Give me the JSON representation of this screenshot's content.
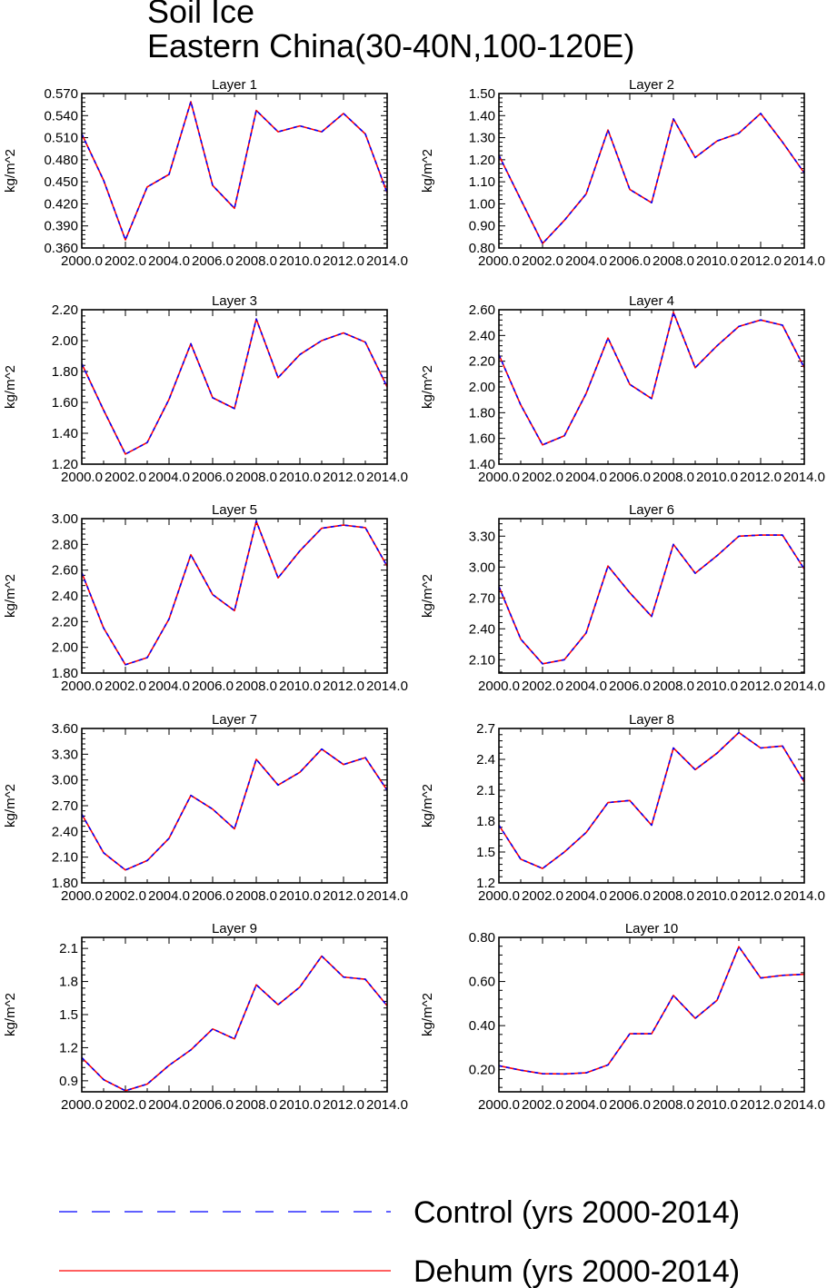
{
  "figure": {
    "title_line1": "Soil Ice",
    "title_line2": "Eastern China(30-40N,100-120E)",
    "ylabel": "kg/m^2"
  },
  "legend": {
    "items": [
      {
        "label": "Control (yrs 2000-2014)",
        "color": "#0000ff",
        "style": "dashed"
      },
      {
        "label": "Dehum (yrs 2000-2014)",
        "color": "#ff0000",
        "style": "solid"
      }
    ]
  },
  "chart_data": [
    {
      "type": "line",
      "title": "Layer 1",
      "ylabel": "kg/m^2",
      "xlim": [
        2000,
        2014
      ],
      "ylim": [
        0.36,
        0.57
      ],
      "xticks": [
        "2000.0",
        "2002.0",
        "2004.0",
        "2006.0",
        "2008.0",
        "2010.0",
        "2012.0",
        "2014.0"
      ],
      "yticks": [
        "0.360",
        "0.390",
        "0.420",
        "0.450",
        "0.480",
        "0.510",
        "0.540",
        "0.570"
      ],
      "x": [
        2000,
        2001,
        2002,
        2003,
        2004,
        2005,
        2006,
        2007,
        2008,
        2009,
        2010,
        2011,
        2012,
        2013,
        2014
      ],
      "series": [
        {
          "name": "Control (yrs 2000-2014)",
          "values": [
            0.515,
            0.452,
            0.371,
            0.443,
            0.46,
            0.559,
            0.445,
            0.414,
            0.547,
            0.518,
            0.526,
            0.518,
            0.543,
            0.515,
            0.435
          ]
        },
        {
          "name": "Dehum (yrs 2000-2014)",
          "values": [
            0.515,
            0.452,
            0.371,
            0.443,
            0.46,
            0.559,
            0.445,
            0.414,
            0.547,
            0.518,
            0.526,
            0.518,
            0.543,
            0.515,
            0.435
          ]
        }
      ]
    },
    {
      "type": "line",
      "title": "Layer 2",
      "ylabel": "kg/m^2",
      "xlim": [
        2000,
        2014
      ],
      "ylim": [
        0.8,
        1.5
      ],
      "xticks": [
        "2000.0",
        "2002.0",
        "2004.0",
        "2006.0",
        "2008.0",
        "2010.0",
        "2012.0",
        "2014.0"
      ],
      "yticks": [
        "0.80",
        "0.90",
        "1.00",
        "1.10",
        "1.20",
        "1.30",
        "1.40",
        "1.50"
      ],
      "x": [
        2000,
        2001,
        2002,
        2003,
        2004,
        2005,
        2006,
        2007,
        2008,
        2009,
        2010,
        2011,
        2012,
        2013,
        2014
      ],
      "series": [
        {
          "name": "Control (yrs 2000-2014)",
          "values": [
            1.22,
            1.02,
            0.82,
            0.925,
            1.045,
            1.335,
            1.065,
            1.005,
            1.385,
            1.21,
            1.285,
            1.32,
            1.41,
            1.28,
            1.14
          ]
        },
        {
          "name": "Dehum (yrs 2000-2014)",
          "values": [
            1.22,
            1.02,
            0.82,
            0.925,
            1.045,
            1.335,
            1.065,
            1.005,
            1.385,
            1.21,
            1.285,
            1.32,
            1.41,
            1.28,
            1.14
          ]
        }
      ]
    },
    {
      "type": "line",
      "title": "Layer 3",
      "ylabel": "kg/m^2",
      "xlim": [
        2000,
        2014
      ],
      "ylim": [
        1.2,
        2.2
      ],
      "xticks": [
        "2000.0",
        "2002.0",
        "2004.0",
        "2006.0",
        "2008.0",
        "2010.0",
        "2012.0",
        "2014.0"
      ],
      "yticks": [
        "1.20",
        "1.40",
        "1.60",
        "1.80",
        "2.00",
        "2.20"
      ],
      "x": [
        2000,
        2001,
        2002,
        2003,
        2004,
        2005,
        2006,
        2007,
        2008,
        2009,
        2010,
        2011,
        2012,
        2013,
        2014
      ],
      "series": [
        {
          "name": "Control (yrs 2000-2014)",
          "values": [
            1.85,
            1.55,
            1.265,
            1.34,
            1.62,
            1.98,
            1.63,
            1.56,
            2.14,
            1.76,
            1.91,
            2.0,
            2.05,
            1.99,
            1.7
          ]
        },
        {
          "name": "Dehum (yrs 2000-2014)",
          "values": [
            1.85,
            1.55,
            1.265,
            1.34,
            1.62,
            1.98,
            1.63,
            1.56,
            2.14,
            1.76,
            1.91,
            2.0,
            2.05,
            1.99,
            1.7
          ]
        }
      ]
    },
    {
      "type": "line",
      "title": "Layer 4",
      "ylabel": "kg/m^2",
      "xlim": [
        2000,
        2014
      ],
      "ylim": [
        1.4,
        2.6
      ],
      "xticks": [
        "2000.0",
        "2002.0",
        "2004.0",
        "2006.0",
        "2008.0",
        "2010.0",
        "2012.0",
        "2014.0"
      ],
      "yticks": [
        "1.40",
        "1.60",
        "1.80",
        "2.00",
        "2.20",
        "2.40",
        "2.60"
      ],
      "x": [
        2000,
        2001,
        2002,
        2003,
        2004,
        2005,
        2006,
        2007,
        2008,
        2009,
        2010,
        2011,
        2012,
        2013,
        2014
      ],
      "series": [
        {
          "name": "Control (yrs 2000-2014)",
          "values": [
            2.25,
            1.86,
            1.55,
            1.62,
            1.95,
            2.38,
            2.02,
            1.91,
            2.58,
            2.15,
            2.32,
            2.47,
            2.52,
            2.48,
            2.15
          ]
        },
        {
          "name": "Dehum (yrs 2000-2014)",
          "values": [
            2.25,
            1.86,
            1.55,
            1.62,
            1.95,
            2.38,
            2.02,
            1.91,
            2.58,
            2.15,
            2.32,
            2.47,
            2.52,
            2.48,
            2.15
          ]
        }
      ]
    },
    {
      "type": "line",
      "title": "Layer 5",
      "ylabel": "kg/m^2",
      "xlim": [
        2000,
        2014
      ],
      "ylim": [
        1.8,
        3.0
      ],
      "xticks": [
        "2000.0",
        "2002.0",
        "2004.0",
        "2006.0",
        "2008.0",
        "2010.0",
        "2012.0",
        "2014.0"
      ],
      "yticks": [
        "1.80",
        "2.00",
        "2.20",
        "2.40",
        "2.60",
        "2.80",
        "3.00"
      ],
      "x": [
        2000,
        2001,
        2002,
        2003,
        2004,
        2005,
        2006,
        2007,
        2008,
        2009,
        2010,
        2011,
        2012,
        2013,
        2014
      ],
      "series": [
        {
          "name": "Control (yrs 2000-2014)",
          "values": [
            2.58,
            2.15,
            1.865,
            1.92,
            2.22,
            2.72,
            2.41,
            2.285,
            2.98,
            2.54,
            2.75,
            2.925,
            2.95,
            2.93,
            2.63
          ]
        },
        {
          "name": "Dehum (yrs 2000-2014)",
          "values": [
            2.58,
            2.15,
            1.865,
            1.92,
            2.22,
            2.72,
            2.41,
            2.285,
            2.98,
            2.54,
            2.75,
            2.925,
            2.95,
            2.93,
            2.63
          ]
        }
      ]
    },
    {
      "type": "line",
      "title": "Layer 6",
      "ylabel": "kg/m^2",
      "xlim": [
        2000,
        2014
      ],
      "ylim": [
        1.97,
        3.47
      ],
      "xticks": [
        "2000.0",
        "2002.0",
        "2004.0",
        "2006.0",
        "2008.0",
        "2010.0",
        "2012.0",
        "2014.0"
      ],
      "yticks": [
        "2.10",
        "2.40",
        "2.70",
        "3.00",
        "3.30"
      ],
      "x": [
        2000,
        2001,
        2002,
        2003,
        2004,
        2005,
        2006,
        2007,
        2008,
        2009,
        2010,
        2011,
        2012,
        2013,
        2014
      ],
      "series": [
        {
          "name": "Control (yrs 2000-2014)",
          "values": [
            2.81,
            2.3,
            2.06,
            2.1,
            2.36,
            3.01,
            2.75,
            2.52,
            3.22,
            2.94,
            3.11,
            3.3,
            3.31,
            3.31,
            2.98
          ]
        },
        {
          "name": "Dehum (yrs 2000-2014)",
          "values": [
            2.81,
            2.3,
            2.06,
            2.1,
            2.36,
            3.01,
            2.75,
            2.52,
            3.22,
            2.94,
            3.11,
            3.3,
            3.31,
            3.31,
            2.98
          ]
        }
      ]
    },
    {
      "type": "line",
      "title": "Layer 7",
      "ylabel": "kg/m^2",
      "xlim": [
        2000,
        2014
      ],
      "ylim": [
        1.8,
        3.6
      ],
      "xticks": [
        "2000.0",
        "2002.0",
        "2004.0",
        "2006.0",
        "2008.0",
        "2010.0",
        "2012.0",
        "2014.0"
      ],
      "yticks": [
        "1.80",
        "2.10",
        "2.40",
        "2.70",
        "3.00",
        "3.30",
        "3.60"
      ],
      "x": [
        2000,
        2001,
        2002,
        2003,
        2004,
        2005,
        2006,
        2007,
        2008,
        2009,
        2010,
        2011,
        2012,
        2013,
        2014
      ],
      "series": [
        {
          "name": "Control (yrs 2000-2014)",
          "values": [
            2.6,
            2.15,
            1.95,
            2.06,
            2.32,
            2.82,
            2.66,
            2.43,
            3.24,
            2.94,
            3.09,
            3.36,
            3.18,
            3.26,
            2.88
          ]
        },
        {
          "name": "Dehum (yrs 2000-2014)",
          "values": [
            2.6,
            2.15,
            1.95,
            2.06,
            2.32,
            2.82,
            2.66,
            2.43,
            3.24,
            2.94,
            3.09,
            3.36,
            3.18,
            3.26,
            2.88
          ]
        }
      ]
    },
    {
      "type": "line",
      "title": "Layer 8",
      "ylabel": "kg/m^2",
      "xlim": [
        2000,
        2014
      ],
      "ylim": [
        1.2,
        2.7
      ],
      "xticks": [
        "2000.0",
        "2002.0",
        "2004.0",
        "2006.0",
        "2008.0",
        "2010.0",
        "2012.0",
        "2014.0"
      ],
      "yticks": [
        "1.2",
        "1.5",
        "1.8",
        "2.1",
        "2.4",
        "2.7"
      ],
      "x": [
        2000,
        2001,
        2002,
        2003,
        2004,
        2005,
        2006,
        2007,
        2008,
        2009,
        2010,
        2011,
        2012,
        2013,
        2014
      ],
      "series": [
        {
          "name": "Control (yrs 2000-2014)",
          "values": [
            1.76,
            1.43,
            1.34,
            1.5,
            1.69,
            1.98,
            2.0,
            1.76,
            2.51,
            2.3,
            2.46,
            2.66,
            2.51,
            2.53,
            2.18
          ]
        },
        {
          "name": "Dehum (yrs 2000-2014)",
          "values": [
            1.76,
            1.43,
            1.34,
            1.5,
            1.69,
            1.98,
            2.0,
            1.76,
            2.51,
            2.3,
            2.46,
            2.66,
            2.51,
            2.53,
            2.18
          ]
        }
      ]
    },
    {
      "type": "line",
      "title": "Layer 9",
      "ylabel": "kg/m^2",
      "xlim": [
        2000,
        2014
      ],
      "ylim": [
        0.8,
        2.2
      ],
      "xticks": [
        "2000.0",
        "2002.0",
        "2004.0",
        "2006.0",
        "2008.0",
        "2010.0",
        "2012.0",
        "2014.0"
      ],
      "yticks": [
        "0.9",
        "1.2",
        "1.5",
        "1.8",
        "2.1"
      ],
      "x": [
        2000,
        2001,
        2002,
        2003,
        2004,
        2005,
        2006,
        2007,
        2008,
        2009,
        2010,
        2011,
        2012,
        2013,
        2014
      ],
      "series": [
        {
          "name": "Control (yrs 2000-2014)",
          "values": [
            1.11,
            0.91,
            0.81,
            0.87,
            1.04,
            1.18,
            1.37,
            1.28,
            1.77,
            1.59,
            1.75,
            2.03,
            1.84,
            1.82,
            1.58
          ]
        },
        {
          "name": "Dehum (yrs 2000-2014)",
          "values": [
            1.11,
            0.91,
            0.81,
            0.87,
            1.04,
            1.18,
            1.37,
            1.28,
            1.77,
            1.59,
            1.75,
            2.03,
            1.84,
            1.82,
            1.58
          ]
        }
      ]
    },
    {
      "type": "line",
      "title": "Layer 10",
      "ylabel": "kg/m^2",
      "xlim": [
        2000,
        2014
      ],
      "ylim": [
        0.1,
        0.8
      ],
      "xticks": [
        "2000.0",
        "2002.0",
        "2004.0",
        "2006.0",
        "2008.0",
        "2010.0",
        "2012.0",
        "2014.0"
      ],
      "yticks": [
        "0.20",
        "0.40",
        "0.60",
        "0.80"
      ],
      "x": [
        2000,
        2001,
        2002,
        2003,
        2004,
        2005,
        2006,
        2007,
        2008,
        2009,
        2010,
        2011,
        2012,
        2013,
        2014
      ],
      "series": [
        {
          "name": "Control (yrs 2000-2014)",
          "values": [
            0.218,
            0.198,
            0.182,
            0.181,
            0.186,
            0.222,
            0.363,
            0.363,
            0.537,
            0.433,
            0.515,
            0.758,
            0.616,
            0.628,
            0.633
          ]
        },
        {
          "name": "Dehum (yrs 2000-2014)",
          "values": [
            0.218,
            0.198,
            0.182,
            0.181,
            0.186,
            0.222,
            0.363,
            0.363,
            0.537,
            0.433,
            0.515,
            0.758,
            0.616,
            0.628,
            0.633
          ]
        }
      ]
    }
  ]
}
